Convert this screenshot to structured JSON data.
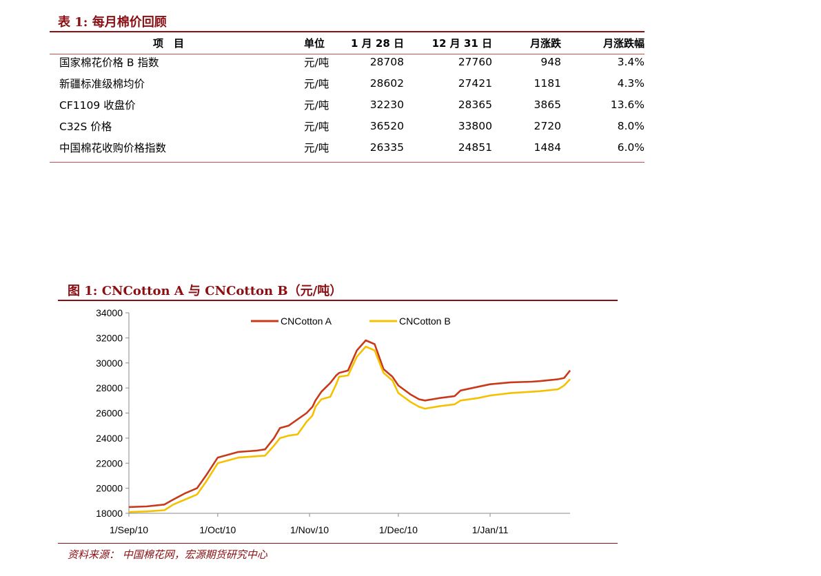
{
  "table": {
    "title": "表 1:  每月棉价回顾",
    "headers": [
      "项　目",
      "单位",
      "1 月 28 日",
      "12 月 31 日",
      "月涨跌",
      "月涨跌幅"
    ],
    "rows": [
      [
        "国家棉花价格 B 指数",
        "元/吨",
        "28708",
        "27760",
        "948",
        "3.4%"
      ],
      [
        "新疆标准级棉均价",
        "元/吨",
        "28602",
        "27421",
        "1181",
        "4.3%"
      ],
      [
        "CF1109 收盘价",
        "元/吨",
        "32230",
        "28365",
        "3865",
        "13.6%"
      ],
      [
        "C32S 价格",
        "元/吨",
        "36520",
        "33800",
        "2720",
        "8.0%"
      ],
      [
        "中国棉花收购价格指数",
        "元/吨",
        "26335",
        "24851",
        "1484",
        "6.0%"
      ]
    ]
  },
  "figure": {
    "title": "图 1:  CNCotton A 与 CNCotton B（元/吨）",
    "source": "资料来源：  中国棉花网，宏源期货研究中心"
  },
  "chart_data": {
    "type": "line",
    "title": "",
    "ylim": [
      18000,
      34000
    ],
    "yticks": [
      18000,
      20000,
      22000,
      24000,
      26000,
      28000,
      30000,
      32000,
      34000
    ],
    "xticks": [
      "1/Sep/10",
      "1/Oct/10",
      "1/Nov/10",
      "1/Dec/10",
      "1/Jan/11"
    ],
    "legend_position": "top",
    "grid": false,
    "series": [
      {
        "name": "CNCotton A",
        "color": "#c8391a",
        "x": [
          "2010-09-01",
          "2010-09-07",
          "2010-09-13",
          "2010-09-16",
          "2010-09-20",
          "2010-09-24",
          "2010-09-27",
          "2010-10-01",
          "2010-10-08",
          "2010-10-11",
          "2010-10-14",
          "2010-10-17",
          "2010-10-20",
          "2010-10-22",
          "2010-10-25",
          "2010-10-28",
          "2010-10-31",
          "2010-11-02",
          "2010-11-03",
          "2010-11-05",
          "2010-11-08",
          "2010-11-10",
          "2010-11-11",
          "2010-11-14",
          "2010-11-17",
          "2010-11-20",
          "2010-11-23",
          "2010-11-26",
          "2010-11-29",
          "2010-12-01",
          "2010-12-05",
          "2010-12-08",
          "2010-12-10",
          "2010-12-15",
          "2010-12-20",
          "2010-12-22",
          "2010-12-28",
          "2011-01-01",
          "2011-01-08",
          "2011-01-15",
          "2011-01-18",
          "2011-01-20",
          "2011-01-24",
          "2011-01-26",
          "2011-01-28"
        ],
        "values": [
          18500,
          18550,
          18700,
          19100,
          19600,
          20000,
          21000,
          22450,
          22900,
          22950,
          23000,
          23100,
          24000,
          24800,
          25000,
          25500,
          26000,
          26500,
          27000,
          27700,
          28400,
          29000,
          29200,
          29400,
          31000,
          31800,
          31500,
          29500,
          28900,
          28200,
          27500,
          27100,
          27000,
          27200,
          27350,
          27800,
          28100,
          28300,
          28450,
          28500,
          28550,
          28600,
          28700,
          28800,
          29400
        ]
      },
      {
        "name": "CNCotton B",
        "color": "#f5c000",
        "x": [
          "2010-09-01",
          "2010-09-07",
          "2010-09-13",
          "2010-09-16",
          "2010-09-20",
          "2010-09-24",
          "2010-09-27",
          "2010-10-01",
          "2010-10-08",
          "2010-10-11",
          "2010-10-14",
          "2010-10-17",
          "2010-10-20",
          "2010-10-22",
          "2010-10-25",
          "2010-10-28",
          "2010-10-31",
          "2010-11-02",
          "2010-11-03",
          "2010-11-05",
          "2010-11-08",
          "2010-11-10",
          "2010-11-11",
          "2010-11-14",
          "2010-11-17",
          "2010-11-20",
          "2010-11-23",
          "2010-11-26",
          "2010-11-29",
          "2010-12-01",
          "2010-12-05",
          "2010-12-08",
          "2010-12-10",
          "2010-12-15",
          "2010-12-20",
          "2010-12-22",
          "2010-12-28",
          "2011-01-01",
          "2011-01-08",
          "2011-01-15",
          "2011-01-18",
          "2011-01-20",
          "2011-01-24",
          "2011-01-26",
          "2011-01-28"
        ],
        "values": [
          18100,
          18150,
          18250,
          18700,
          19100,
          19500,
          20500,
          22000,
          22450,
          22500,
          22550,
          22600,
          23400,
          24000,
          24200,
          24300,
          25300,
          25800,
          26500,
          27100,
          27300,
          28300,
          28900,
          29000,
          30500,
          31300,
          31000,
          29200,
          28600,
          27600,
          26900,
          26500,
          26350,
          26550,
          26700,
          27000,
          27200,
          27400,
          27600,
          27700,
          27750,
          27800,
          27900,
          28200,
          28700
        ]
      }
    ]
  }
}
